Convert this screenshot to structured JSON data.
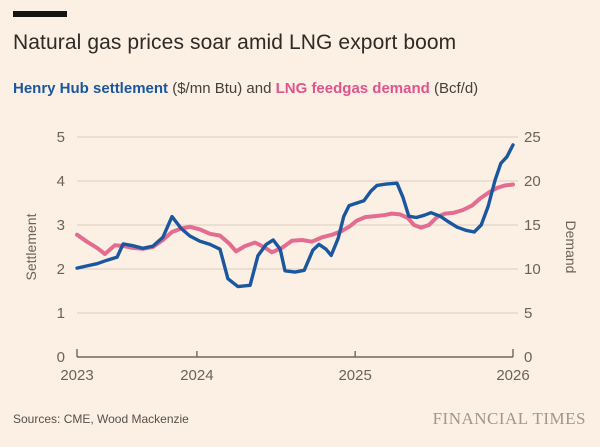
{
  "header": {
    "title": "Natural gas prices soar amid LNG export boom"
  },
  "subtitle": {
    "series_a": "Henry Hub settlement",
    "middle": " ($/mn Btu) and ",
    "series_b": "LNG feedgas demand",
    "end": " (Bcf/d)"
  },
  "footer": {
    "sources": "Sources: CME, Wood Mackenzie",
    "brand": "FINANCIAL TIMES"
  },
  "colors": {
    "background": "#fcefe3",
    "blue": "#1a579e",
    "pink": "#e36c90",
    "grid": "#dacdc1",
    "axis": "#6e6861",
    "tick_text": "#6b6359"
  },
  "chart_data": {
    "type": "line",
    "title": "Natural gas prices soar amid LNG export boom",
    "subtitle": "Henry Hub settlement ($/mn Btu) and LNG feedgas demand (Bcf/d)",
    "grid": true,
    "legend_position": "in-subtitle",
    "axes": {
      "left": {
        "label": "Settlement",
        "range": [
          0,
          5
        ],
        "ticks": [
          0,
          1,
          2,
          3,
          4,
          5
        ]
      },
      "right": {
        "label": "Demand",
        "range": [
          0,
          25
        ],
        "ticks": [
          0,
          5,
          10,
          15,
          20,
          25
        ]
      },
      "x": {
        "labels": [
          "2023",
          "2024",
          "2025",
          "2026"
        ],
        "positions": [
          0,
          0.275,
          0.638,
          1
        ]
      }
    },
    "series": [
      {
        "name": "LNG feedgas demand",
        "unit": "Bcf/d",
        "axis": "right",
        "color": "#e36c90",
        "points": [
          [
            0.0,
            13.9
          ],
          [
            0.023,
            13.1
          ],
          [
            0.046,
            12.4
          ],
          [
            0.064,
            11.7
          ],
          [
            0.087,
            12.7
          ],
          [
            0.108,
            12.6
          ],
          [
            0.128,
            12.4
          ],
          [
            0.151,
            12.3
          ],
          [
            0.174,
            12.5
          ],
          [
            0.197,
            13.3
          ],
          [
            0.218,
            14.2
          ],
          [
            0.239,
            14.6
          ],
          [
            0.259,
            14.8
          ],
          [
            0.282,
            14.5
          ],
          [
            0.305,
            14.0
          ],
          [
            0.328,
            13.8
          ],
          [
            0.349,
            12.9
          ],
          [
            0.365,
            12.0
          ],
          [
            0.385,
            12.6
          ],
          [
            0.408,
            13.0
          ],
          [
            0.429,
            12.5
          ],
          [
            0.447,
            11.9
          ],
          [
            0.47,
            12.4
          ],
          [
            0.493,
            13.2
          ],
          [
            0.516,
            13.3
          ],
          [
            0.539,
            13.1
          ],
          [
            0.562,
            13.6
          ],
          [
            0.585,
            13.9
          ],
          [
            0.606,
            14.3
          ],
          [
            0.624,
            14.8
          ],
          [
            0.642,
            15.5
          ],
          [
            0.661,
            15.9
          ],
          [
            0.681,
            16.0
          ],
          [
            0.702,
            16.1
          ],
          [
            0.722,
            16.3
          ],
          [
            0.741,
            16.2
          ],
          [
            0.759,
            15.8
          ],
          [
            0.773,
            15.0
          ],
          [
            0.789,
            14.7
          ],
          [
            0.807,
            15.0
          ],
          [
            0.826,
            15.9
          ],
          [
            0.844,
            16.3
          ],
          [
            0.865,
            16.4
          ],
          [
            0.885,
            16.7
          ],
          [
            0.906,
            17.2
          ],
          [
            0.924,
            18.0
          ],
          [
            0.945,
            18.7
          ],
          [
            0.963,
            19.2
          ],
          [
            0.982,
            19.5
          ],
          [
            1.0,
            19.6
          ]
        ]
      },
      {
        "name": "Henry Hub settlement",
        "unit": "$/mn Btu",
        "axis": "left",
        "color": "#1a579e",
        "points": [
          [
            0.0,
            2.02
          ],
          [
            0.023,
            2.07
          ],
          [
            0.046,
            2.12
          ],
          [
            0.069,
            2.2
          ],
          [
            0.092,
            2.27
          ],
          [
            0.106,
            2.57
          ],
          [
            0.128,
            2.53
          ],
          [
            0.151,
            2.47
          ],
          [
            0.174,
            2.52
          ],
          [
            0.197,
            2.72
          ],
          [
            0.218,
            3.19
          ],
          [
            0.239,
            2.92
          ],
          [
            0.259,
            2.75
          ],
          [
            0.282,
            2.63
          ],
          [
            0.305,
            2.56
          ],
          [
            0.328,
            2.45
          ],
          [
            0.346,
            1.78
          ],
          [
            0.369,
            1.6
          ],
          [
            0.397,
            1.63
          ],
          [
            0.415,
            2.3
          ],
          [
            0.434,
            2.56
          ],
          [
            0.45,
            2.66
          ],
          [
            0.466,
            2.45
          ],
          [
            0.477,
            1.96
          ],
          [
            0.5,
            1.93
          ],
          [
            0.521,
            1.97
          ],
          [
            0.541,
            2.43
          ],
          [
            0.555,
            2.56
          ],
          [
            0.571,
            2.45
          ],
          [
            0.583,
            2.31
          ],
          [
            0.599,
            2.7
          ],
          [
            0.612,
            3.2
          ],
          [
            0.624,
            3.44
          ],
          [
            0.642,
            3.5
          ],
          [
            0.658,
            3.55
          ],
          [
            0.674,
            3.77
          ],
          [
            0.688,
            3.9
          ],
          [
            0.709,
            3.93
          ],
          [
            0.734,
            3.95
          ],
          [
            0.748,
            3.62
          ],
          [
            0.761,
            3.2
          ],
          [
            0.778,
            3.17
          ],
          [
            0.796,
            3.22
          ],
          [
            0.812,
            3.28
          ],
          [
            0.833,
            3.2
          ],
          [
            0.851,
            3.08
          ],
          [
            0.872,
            2.95
          ],
          [
            0.892,
            2.88
          ],
          [
            0.911,
            2.84
          ],
          [
            0.927,
            3.0
          ],
          [
            0.943,
            3.42
          ],
          [
            0.959,
            4.02
          ],
          [
            0.972,
            4.4
          ],
          [
            0.986,
            4.55
          ],
          [
            1.0,
            4.82
          ]
        ]
      }
    ]
  }
}
